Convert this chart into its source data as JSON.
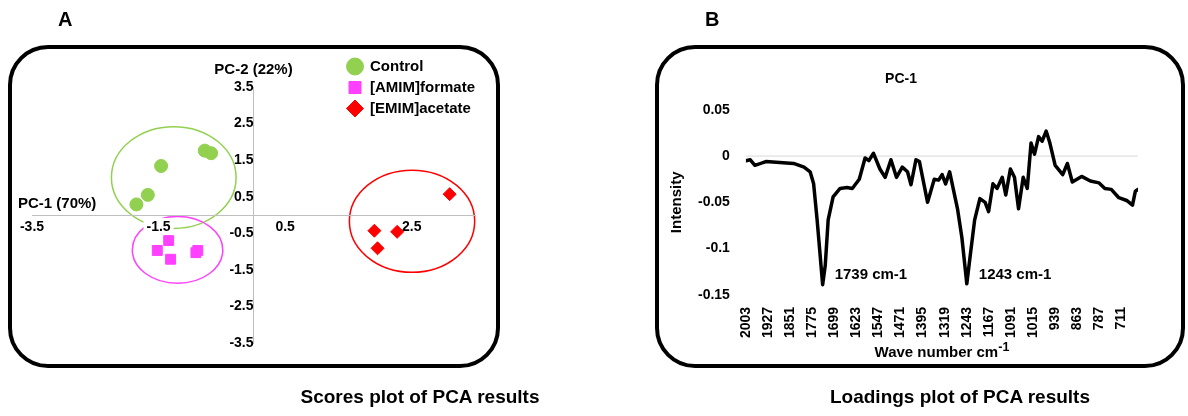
{
  "chart_data": [
    {
      "type": "scatter",
      "xlabel": "PC-1 (70%)",
      "ylabel": "PC-2 (22%)",
      "xlim": [
        -3.5,
        3.5
      ],
      "ylim": [
        -3.5,
        3.5
      ],
      "xticks": [
        -3.5,
        -1.5,
        0.5,
        2.5
      ],
      "yticks": [
        3.5,
        2.5,
        1.5,
        0.5,
        -0.5,
        -1.5,
        -2.5,
        -3.5
      ],
      "legend": "top right",
      "series": [
        {
          "name": "Control",
          "color": "#92d050",
          "marker": "circle",
          "x": [
            -0.77,
            -0.67,
            -1.46,
            -1.67,
            -1.85
          ],
          "values": [
            1.76,
            1.69,
            1.34,
            0.55,
            0.29
          ]
        },
        {
          "name": "[AMIM]formate",
          "color": "#ff40ff",
          "marker": "square",
          "x": [
            -1.34,
            -1.52,
            -1.31,
            -0.91,
            -0.88
          ],
          "values": [
            -0.7,
            -0.97,
            -1.21,
            -1.03,
            -0.97
          ]
        },
        {
          "name": "[EMIM]acetate",
          "color": "#ff0000",
          "marker": "diamond",
          "x": [
            1.91,
            2.27,
            1.96,
            3.1
          ],
          "values": [
            -0.43,
            -0.46,
            -0.91,
            0.57
          ]
        }
      ],
      "annotations": [
        "A",
        "Scores plot of PCA results"
      ]
    },
    {
      "type": "line",
      "title": "PC-1",
      "xlabel": "Wave number cm$^{-1}$",
      "ylabel": "Intensity",
      "color": "#000000",
      "xlim": [
        2003,
        654
      ],
      "ylim": [
        -0.15,
        0.05
      ],
      "xticks": [
        2003,
        1927,
        1851,
        1775,
        1699,
        1623,
        1547,
        1471,
        1395,
        1319,
        1243,
        1167,
        1091,
        1015,
        939,
        863,
        787,
        711
      ],
      "yticks": [
        0.05,
        0,
        -0.05,
        -0.1,
        -0.15
      ],
      "x": [
        2003,
        1988,
        1972,
        1934,
        1887,
        1839,
        1803,
        1782,
        1770,
        1758,
        1739,
        1730,
        1720,
        1703,
        1679,
        1655,
        1637,
        1613,
        1593,
        1580,
        1564,
        1542,
        1524,
        1504,
        1485,
        1465,
        1447,
        1435,
        1418,
        1406,
        1378,
        1355,
        1340,
        1328,
        1316,
        1302,
        1275,
        1260,
        1243,
        1231,
        1216,
        1198,
        1180,
        1168,
        1153,
        1139,
        1121,
        1109,
        1093,
        1079,
        1065,
        1049,
        1035,
        1022,
        1010,
        996,
        984,
        970,
        958,
        939,
        913,
        897,
        880,
        848,
        818,
        788,
        768,
        746,
        720,
        693,
        673,
        663,
        654
      ],
      "values": [
        -0.005,
        -0.004,
        -0.01,
        -0.006,
        -0.007,
        -0.008,
        -0.012,
        -0.017,
        -0.03,
        -0.069,
        -0.139,
        -0.118,
        -0.069,
        -0.044,
        -0.035,
        -0.034,
        -0.035,
        -0.025,
        -0.002,
        -0.005,
        0.003,
        -0.014,
        -0.023,
        -0.004,
        -0.023,
        -0.012,
        -0.017,
        -0.031,
        -0.004,
        -0.006,
        -0.05,
        -0.025,
        -0.026,
        -0.02,
        -0.03,
        -0.017,
        -0.057,
        -0.088,
        -0.138,
        -0.107,
        -0.069,
        -0.046,
        -0.05,
        -0.06,
        -0.03,
        -0.035,
        -0.023,
        -0.042,
        -0.014,
        -0.023,
        -0.057,
        -0.023,
        -0.035,
        0.014,
        0.002,
        0.021,
        0.016,
        0.027,
        0.015,
        -0.01,
        -0.02,
        -0.008,
        -0.028,
        -0.022,
        -0.027,
        -0.029,
        -0.035,
        -0.036,
        -0.045,
        -0.048,
        -0.053,
        -0.038,
        -0.036
      ],
      "ref_lines": [
        {
          "axis": "y",
          "value": 0,
          "color": "#d9d9d9"
        }
      ],
      "annotations": [
        "B",
        "Loadings plot of PCA results",
        {
          "text": "1739 cm-1",
          "x": 1739,
          "y": -0.128
        },
        {
          "text": "1243 cm-1",
          "x": 1243,
          "y": -0.128
        }
      ]
    }
  ]
}
